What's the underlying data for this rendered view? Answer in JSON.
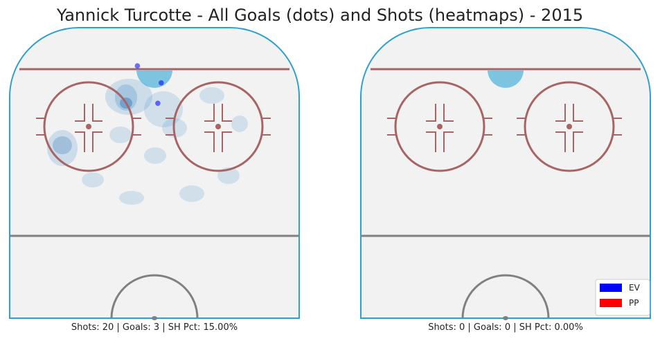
{
  "title": "Yannick Turcotte - All Goals (dots) and Shots (heatmaps) - 2015",
  "colors": {
    "ice": "#f2f2f2",
    "boards": "#2ea0cf",
    "red_line": "#a86464",
    "center_line": "#808080",
    "crease": "#7cc4e0",
    "heat": "#5b9bd0",
    "ev": "#0000ff",
    "pp": "#ff0000"
  },
  "chart_data": [
    {
      "type": "scatter",
      "panel": "left",
      "caption": "Shots: 20 | Goals: 3 | SH Pct: 15.00%",
      "goals": [
        {
          "x": -5,
          "y": 79,
          "strength": "EV"
        },
        {
          "x": 2,
          "y": 74,
          "strength": "EV"
        },
        {
          "x": 1,
          "y": 68,
          "strength": "EV"
        }
      ],
      "shot_density": "present"
    },
    {
      "type": "scatter",
      "panel": "right",
      "caption": "Shots: 0 | Goals: 0 | SH Pct: 0.00%",
      "goals": []
    }
  ],
  "legend": [
    {
      "label": "EV",
      "color": "#0000ff"
    },
    {
      "label": "PP",
      "color": "#ff0000"
    }
  ]
}
